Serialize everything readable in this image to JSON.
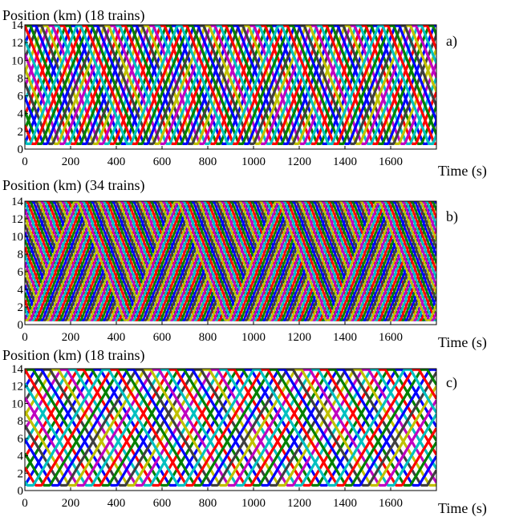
{
  "chart_data": [
    {
      "type": "line",
      "panel_label": "a)",
      "title": "Position (km) (18 trains)",
      "xlabel": "Time (s)",
      "xlim": [
        0,
        1800
      ],
      "ylim": [
        0,
        14
      ],
      "xticks": [
        0,
        200,
        400,
        600,
        800,
        1000,
        1200,
        1400,
        1600
      ],
      "yticks": [
        0,
        2,
        4,
        6,
        8,
        10,
        12,
        14
      ],
      "grid": false,
      "train_count": 18,
      "colors": [
        "#0000ff",
        "#008000",
        "#ff0000",
        "#00c0c0",
        "#c000c0",
        "#c0c000",
        "#404040"
      ],
      "track_bottom_km": 0.6,
      "track_top_km": 13.9,
      "round_trip_s": 440,
      "line_width": 3.2
    },
    {
      "type": "line",
      "panel_label": "b)",
      "title": "Position (km) (34 trains)",
      "xlabel": "Time (s)",
      "xlim": [
        0,
        1800
      ],
      "ylim": [
        0,
        14
      ],
      "xticks": [
        0,
        200,
        400,
        600,
        800,
        1000,
        1200,
        1400,
        1600
      ],
      "yticks": [
        0,
        2,
        4,
        6,
        8,
        10,
        12,
        14
      ],
      "grid": false,
      "train_count": 34,
      "colors": [
        "#0000ff",
        "#008000",
        "#ff0000",
        "#00c0c0",
        "#c000c0",
        "#c0c000",
        "#404040"
      ],
      "track_bottom_km": 0.5,
      "track_top_km": 13.9,
      "round_trip_s": 440,
      "line_width": 2.6
    },
    {
      "type": "line",
      "panel_label": "c)",
      "title": "Position (km) (18 trains)",
      "xlabel": "Time (s)",
      "xlim": [
        0,
        1800
      ],
      "ylim": [
        0,
        14
      ],
      "xticks": [
        0,
        200,
        400,
        600,
        800,
        1000,
        1200,
        1400,
        1600
      ],
      "yticks": [
        0,
        2,
        4,
        6,
        8,
        10,
        12,
        14
      ],
      "grid": false,
      "train_count": 18,
      "colors": [
        "#0000ff",
        "#008000",
        "#ff0000",
        "#00c0c0",
        "#c000c0",
        "#c0c000",
        "#404040"
      ],
      "track_bottom_km": 0.6,
      "track_top_km": 13.9,
      "round_trip_s": 660,
      "line_width": 3.2
    }
  ]
}
